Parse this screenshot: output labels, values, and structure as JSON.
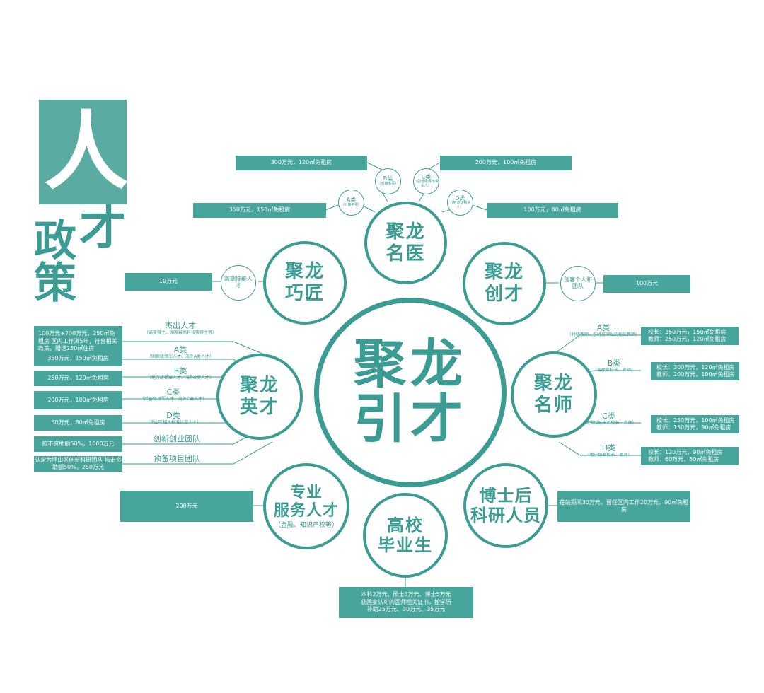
{
  "title": {
    "char1": "人",
    "char2": "才",
    "char3": "政",
    "char4": "策"
  },
  "center": {
    "line1": "聚龙",
    "line2": "引才"
  },
  "mingyi": {
    "line1": "聚龙",
    "line2": "名医",
    "cats": [
      {
        "label": "A类",
        "sub": "（省级名医）",
        "value": "350万元，150㎡免租房"
      },
      {
        "label": "B类",
        "sub": "（省级名医）",
        "value": "300万元，120㎡免租房"
      },
      {
        "label": "C类",
        "sub": "（副省级城市带头人）",
        "value": "200万元，100㎡免租房"
      },
      {
        "label": "D类",
        "sub": "（地市级带头人）",
        "value": "100万元，80㎡免租房"
      }
    ]
  },
  "qiaojiang": {
    "line1": "聚龙",
    "line2": "巧匠",
    "cat": "高端技能人才",
    "value": "10万元"
  },
  "chuangcai": {
    "line1": "聚龙",
    "line2": "创才",
    "cat": "创客个人和团队",
    "value": "100万元"
  },
  "yingcai": {
    "line1": "聚龙",
    "line2": "英才",
    "rows": [
      {
        "label": "杰出人才",
        "sub": "（诺奖得主、国家最高科技奖得主等）",
        "value": "100万元+700万元，250㎡免租房 区内工作满5年，符合相关政策，赠送250㎡住房"
      },
      {
        "label": "A类",
        "sub": "（国家级领军人才、海外A类人才）",
        "value": "350万元，150㎡免租房"
      },
      {
        "label": "B类",
        "sub": "（地方级领军人才、海外B类人才）",
        "value": "250万元，120㎡免租房"
      },
      {
        "label": "C类",
        "sub": "（后备级领军人才、海外C类人才）",
        "value": "200万元，100㎡免租房"
      },
      {
        "label": "D类",
        "sub": "（坪山区相关标准认定人才）",
        "value": "50万元，80㎡免租房"
      },
      {
        "label": "创新创业团队",
        "sub": "",
        "value": "按市资助额50%，1000万元"
      },
      {
        "label": "预备项目团队",
        "sub": "",
        "value": "认定为坪山区创新科研团队 按市资助额50%，250万元"
      }
    ]
  },
  "mingshi": {
    "line1": "聚龙",
    "line2": "名师",
    "rows": [
      {
        "label": "A类",
        "sub": "（特级教师、享特殊津贴的校长教师）",
        "v1": "校长：350万元，150㎡免租房",
        "v2": "教师：250万元，120㎡免租房"
      },
      {
        "label": "B类",
        "sub": "（省级名校长、名师）",
        "v1": "校长：300万元，120㎡免租房",
        "v2": "教师：200万元，100㎡免租房"
      },
      {
        "label": "C类",
        "sub": "（副省级城市名校长、名师）",
        "v1": "校长：250万元，100㎡免租房",
        "v2": "教师：150万元，90㎡免租房"
      },
      {
        "label": "D类",
        "sub": "（地市级名校长、名师）",
        "v1": "校长：120万元，90㎡免租房",
        "v2": "教师：60万元，80㎡免租房"
      }
    ]
  },
  "zhuanye": {
    "line1": "专业",
    "line2": "服务人才",
    "sub": "（金融、知识产权等）",
    "value": "200万元"
  },
  "boshihou": {
    "line1": "博士后",
    "line2": "科研人员",
    "value": "在站期间30万元，留任区内工作20万元，90㎡免租房"
  },
  "gaoxiao": {
    "line1": "高校",
    "line2": "毕业生",
    "value": [
      "本科2万元、硕士3万元、博士5万元",
      "获国家认可的医师相关证书，按学历",
      "补助25万元、30万元、35万元"
    ]
  },
  "colors": {
    "teal": "#3a9c93",
    "box": "#47a59b"
  }
}
